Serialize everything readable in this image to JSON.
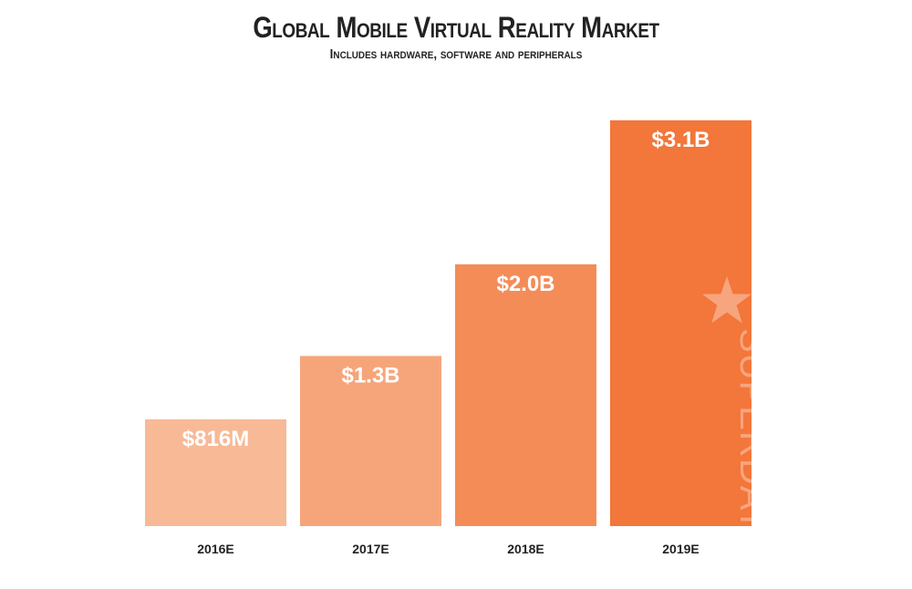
{
  "chart_data": {
    "type": "bar",
    "title": "Global Mobile Virtual Reality Market",
    "subtitle": "Includes hardware, software and peripherals",
    "categories": [
      "2016E",
      "2017E",
      "2018E",
      "2019E"
    ],
    "values": [
      0.816,
      1.3,
      2.0,
      3.1
    ],
    "unit": "billion USD",
    "data_labels": [
      "$816M",
      "$1.3B",
      "$2.0B",
      "$3.1B"
    ],
    "bar_colors": [
      "#f8b996",
      "#f6a57a",
      "#f48c58",
      "#f3763a"
    ],
    "ylim": [
      0,
      3.1
    ],
    "grid": false,
    "legend": "none",
    "xlabel": "",
    "ylabel": ""
  },
  "watermark": {
    "text": "SUPERDATA",
    "icon": "star-icon"
  },
  "colors": {
    "text": "#222222",
    "background": "#ffffff"
  }
}
